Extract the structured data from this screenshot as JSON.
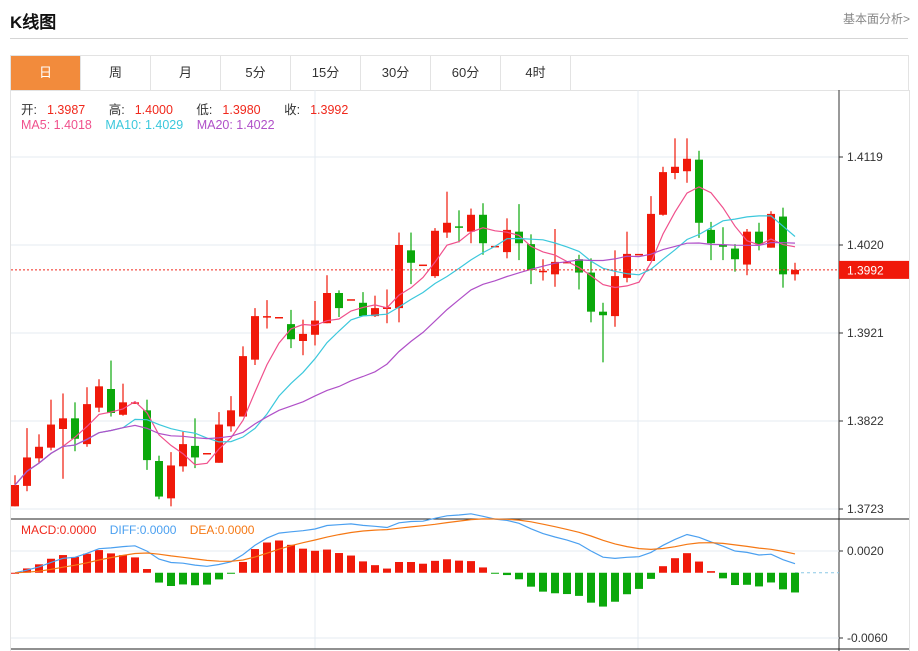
{
  "header": {
    "title": "K线图",
    "more_link": "基本面分析>"
  },
  "tabs": [
    {
      "label": "日",
      "active": true
    },
    {
      "label": "周"
    },
    {
      "label": "月"
    },
    {
      "label": "5分"
    },
    {
      "label": "15分"
    },
    {
      "label": "30分"
    },
    {
      "label": "60分"
    },
    {
      "label": "4时"
    }
  ],
  "ohlc_legend": {
    "open_label": "开:",
    "open": "1.3987",
    "high_label": "高:",
    "high": "1.4000",
    "low_label": "低:",
    "low": "1.3980",
    "close_label": "收:",
    "close": "1.3992"
  },
  "ma_legend": {
    "ma5": "MA5: 1.4018",
    "ma10": "MA10: 1.4029",
    "ma20": "MA20: 1.4022"
  },
  "macd_legend": {
    "macd": "MACD:0.0000",
    "diff": "DIFF:0.0000",
    "dea": "DEA:0.0000"
  },
  "colors": {
    "up": "#f0190a",
    "down": "#0ba80b",
    "ma5": "#f0508c",
    "ma10": "#3cc8dc",
    "ma20": "#b050c8",
    "diff": "#4ba0f0",
    "dea": "#f57814",
    "active_tab": "#f28b3c"
  },
  "chart_data": {
    "type": "candlestick",
    "price_axis": {
      "ticks": [
        "1.4119",
        "1.4020",
        "1.3921",
        "1.3822",
        "1.3723"
      ],
      "range": [
        1.3723,
        1.4119
      ]
    },
    "current_price": "1.3992",
    "macd_axis": {
      "ticks": [
        "0.0020",
        "-0.0060"
      ],
      "range": [
        -0.006,
        0.002
      ]
    },
    "ohlc": [
      [
        1.3726,
        1.3761,
        1.3726,
        1.375
      ],
      [
        1.3749,
        1.3814,
        1.3743,
        1.3781
      ],
      [
        1.378,
        1.3807,
        1.3775,
        1.3793
      ],
      [
        1.3792,
        1.3846,
        1.3789,
        1.3818
      ],
      [
        1.3813,
        1.3853,
        1.3757,
        1.3825
      ],
      [
        1.3825,
        1.3843,
        1.3788,
        1.3802
      ],
      [
        1.3796,
        1.386,
        1.3793,
        1.3841
      ],
      [
        1.3837,
        1.3869,
        1.3832,
        1.3861
      ],
      [
        1.3858,
        1.389,
        1.3827,
        1.3831
      ],
      [
        1.3829,
        1.3864,
        1.3828,
        1.3843
      ],
      [
        1.3843,
        1.3844,
        1.3842,
        1.3843
      ],
      [
        1.3834,
        1.3846,
        1.3767,
        1.3778
      ],
      [
        1.3777,
        1.3783,
        1.3734,
        1.3737
      ],
      [
        1.3735,
        1.3787,
        1.3726,
        1.3772
      ],
      [
        1.3771,
        1.381,
        1.3765,
        1.3796
      ],
      [
        1.3794,
        1.3825,
        1.3769,
        1.3781
      ],
      [
        1.3786,
        1.3786,
        1.3786,
        1.3786
      ],
      [
        1.3775,
        1.3832,
        1.3775,
        1.3818
      ],
      [
        1.3816,
        1.385,
        1.381,
        1.3834
      ],
      [
        1.3827,
        1.3906,
        1.3827,
        1.3895
      ],
      [
        1.3891,
        1.3949,
        1.3885,
        1.394
      ],
      [
        1.394,
        1.3958,
        1.3926,
        1.394
      ],
      [
        1.3939,
        1.3939,
        1.3939,
        1.3939
      ],
      [
        1.3931,
        1.3947,
        1.3904,
        1.3914
      ],
      [
        1.3912,
        1.3936,
        1.3896,
        1.392
      ],
      [
        1.3919,
        1.3957,
        1.3907,
        1.3935
      ],
      [
        1.3932,
        1.3986,
        1.3932,
        1.3966
      ],
      [
        1.3966,
        1.3969,
        1.3939,
        1.3949
      ],
      [
        1.3959,
        1.3959,
        1.3959,
        1.3959
      ],
      [
        1.3955,
        1.3967,
        1.394,
        1.394
      ],
      [
        1.394,
        1.3963,
        1.3939,
        1.3949
      ],
      [
        1.3948,
        1.397,
        1.3932,
        1.395
      ],
      [
        1.3949,
        1.4034,
        1.3933,
        1.402
      ],
      [
        1.4014,
        1.4034,
        1.3976,
        1.4
      ],
      [
        1.3998,
        1.3998,
        1.3998,
        1.3998
      ],
      [
        1.3985,
        1.4039,
        1.3983,
        1.4036
      ],
      [
        1.4034,
        1.408,
        1.4028,
        1.4045
      ],
      [
        1.4041,
        1.4059,
        1.4023,
        1.404
      ],
      [
        1.4035,
        1.4061,
        1.4022,
        1.4054
      ],
      [
        1.4054,
        1.4067,
        1.4009,
        1.4022
      ],
      [
        1.4019,
        1.4019,
        1.4019,
        1.4019
      ],
      [
        1.4012,
        1.405,
        1.4005,
        1.4037
      ],
      [
        1.4035,
        1.4066,
        1.4003,
        1.4022
      ],
      [
        1.4021,
        1.4032,
        1.3976,
        1.3992
      ],
      [
        1.3991,
        1.4004,
        1.398,
        1.3991
      ],
      [
        1.3987,
        1.4038,
        1.3973,
        1.4001
      ],
      [
        1.4001,
        1.4001,
        1.4001,
        1.4001
      ],
      [
        1.4004,
        1.4009,
        1.397,
        1.3989
      ],
      [
        1.3989,
        1.4005,
        1.3933,
        1.3945
      ],
      [
        1.3945,
        1.3955,
        1.3888,
        1.3941
      ],
      [
        1.394,
        1.4014,
        1.3928,
        1.3985
      ],
      [
        1.3983,
        1.4035,
        1.3978,
        1.401
      ],
      [
        1.401,
        1.401,
        1.401,
        1.401
      ],
      [
        1.4002,
        1.4075,
        1.4002,
        1.4055
      ],
      [
        1.4054,
        1.4108,
        1.4053,
        1.4102
      ],
      [
        1.4101,
        1.414,
        1.4094,
        1.4108
      ],
      [
        1.4103,
        1.414,
        1.409,
        1.4117
      ],
      [
        1.4116,
        1.4126,
        1.4028,
        1.4045
      ],
      [
        1.4037,
        1.4046,
        1.4003,
        1.4022
      ],
      [
        1.402,
        1.404,
        1.4003,
        1.4018
      ],
      [
        1.4016,
        1.4021,
        1.399,
        1.4004
      ],
      [
        1.3998,
        1.4038,
        1.3986,
        1.4035
      ],
      [
        1.4035,
        1.4045,
        1.4014,
        1.4021
      ],
      [
        1.4017,
        1.4058,
        1.4017,
        1.4055
      ],
      [
        1.4052,
        1.4062,
        1.3972,
        1.3987
      ],
      [
        1.3987,
        1.4,
        1.398,
        1.3992
      ]
    ]
  }
}
